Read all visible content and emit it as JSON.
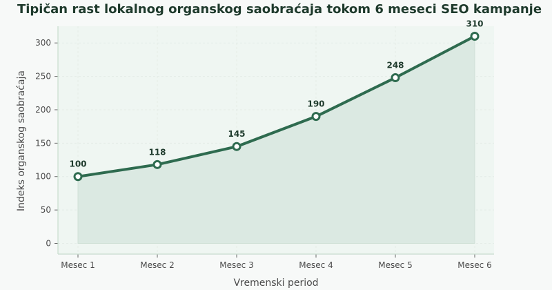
{
  "chart_data": {
    "type": "area",
    "title": "Tipičan rast lokalnog organskog saobraćaja tokom 6 meseci SEO kampanje",
    "xlabel": "Vremenski period",
    "ylabel": "Indeks organskog saobraćaja",
    "categories": [
      "Mesec 1",
      "Mesec 2",
      "Mesec 3",
      "Mesec 4",
      "Mesec 5",
      "Mesec 6"
    ],
    "values": [
      100,
      118,
      145,
      190,
      248,
      310
    ],
    "data_labels": [
      "100",
      "118",
      "145",
      "190",
      "248",
      "310"
    ],
    "ylim": [
      -16,
      325
    ],
    "yticks": [
      0,
      50,
      100,
      150,
      200,
      250,
      300
    ],
    "ytick_labels": [
      "0",
      "50",
      "100",
      "150",
      "200",
      "250",
      "300"
    ],
    "grid": true,
    "colors": {
      "line": "#2e6b4f",
      "area": "#dbe9e2",
      "marker_fill": "#ffffff",
      "plot_bg": "#eff6f2",
      "page_bg": "#f7f9f8",
      "title": "#1e3a2c"
    }
  }
}
